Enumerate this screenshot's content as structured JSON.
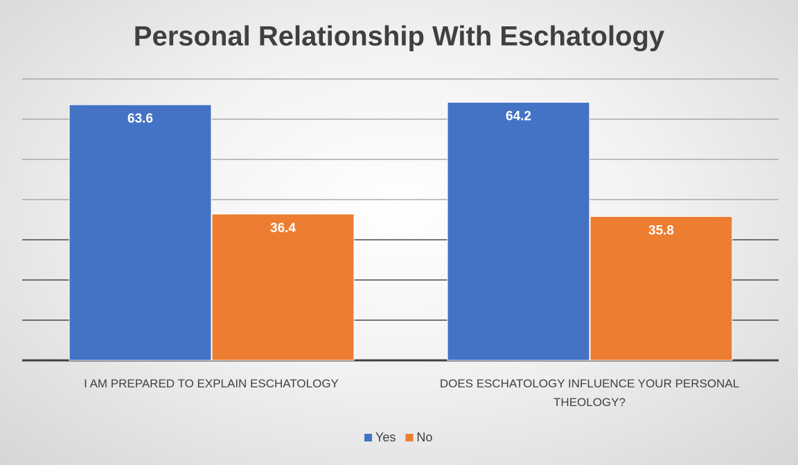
{
  "chart_data": {
    "type": "bar",
    "title": "Personal Relationship With Eschatology",
    "categories": [
      "I AM PREPARED TO EXPLAIN ESCHATOLOGY",
      "DOES ESCHATOLOGY INFLUENCE YOUR PERSONAL THEOLOGY?"
    ],
    "series": [
      {
        "name": "Yes",
        "color": "#4472c4",
        "values": [
          63.6,
          64.2
        ]
      },
      {
        "name": "No",
        "color": "#ed7d31",
        "values": [
          36.4,
          35.8
        ]
      }
    ],
    "ylim": [
      0,
      70
    ],
    "yticks": [
      0,
      10,
      20,
      30,
      40,
      50,
      60,
      70
    ],
    "grid": true,
    "legend": "bottom"
  }
}
